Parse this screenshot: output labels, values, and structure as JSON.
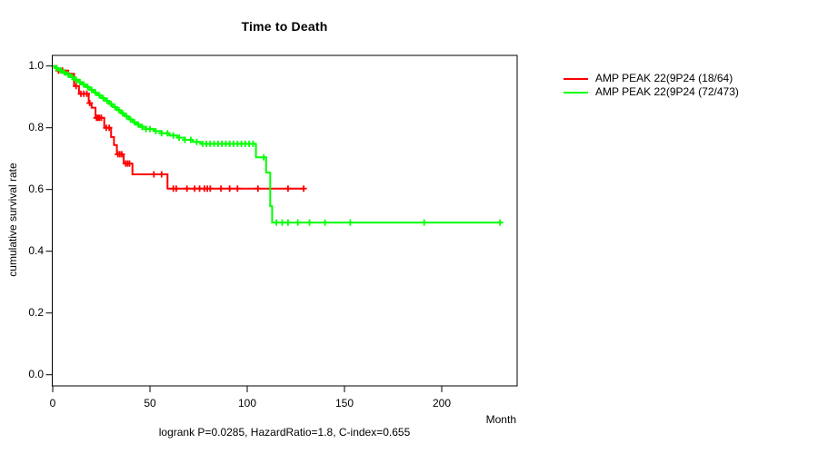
{
  "title": "Time to Death",
  "caption": "logrank P=0.0285, HazardRatio=1.8, C-index=0.655",
  "axes": {
    "x_label": "Month",
    "y_label": "cumulative survival rate",
    "x_tick_labels": [
      "0",
      "50",
      "100",
      "150",
      "200"
    ],
    "y_tick_labels": [
      "0.0",
      "0.2",
      "0.4",
      "0.6",
      "0.8",
      "1.0"
    ]
  },
  "legend": [
    {
      "label": "AMP PEAK 22(9P24 (18/64)",
      "color": "#ff0000"
    },
    {
      "label": "AMP PEAK 22(9P24 (72/473)",
      "color": "#00ff00"
    }
  ],
  "chart_data": {
    "type": "line",
    "subtype": "kaplan-meier-step",
    "title": "Time to Death",
    "xlabel": "Month",
    "ylabel": "cumulative survival rate",
    "xlim": [
      0,
      240
    ],
    "ylim": [
      0.0,
      1.0
    ],
    "x_ticks": [
      0,
      50,
      100,
      150,
      200
    ],
    "y_ticks": [
      0.0,
      0.2,
      0.4,
      0.6,
      0.8,
      1.0
    ],
    "grid": false,
    "legend_position": "outside-top-right",
    "frame_color": "#000000",
    "stats": {
      "logrank_p": 0.0285,
      "hazard_ratio": 1.8,
      "c_index": 0.655
    },
    "series": [
      {
        "name": "AMP PEAK 22(9P24 (18/64)",
        "color": "#ff0000",
        "events_over_n": "18/64",
        "steps": [
          [
            0,
            1.0
          ],
          [
            2,
            0.985
          ],
          [
            8,
            0.975
          ],
          [
            11,
            0.935
          ],
          [
            13.5,
            0.91
          ],
          [
            18.5,
            0.88
          ],
          [
            20,
            0.865
          ],
          [
            22,
            0.832
          ],
          [
            26.5,
            0.8
          ],
          [
            30,
            0.77
          ],
          [
            31.5,
            0.744
          ],
          [
            33,
            0.714
          ],
          [
            36.5,
            0.684
          ],
          [
            41,
            0.649
          ],
          [
            59,
            0.603
          ],
          [
            129,
            0.603
          ]
        ],
        "censor_times": [
          3,
          5,
          12,
          14.5,
          16,
          17.5,
          19,
          22.5,
          23,
          23.5,
          24,
          25,
          27.5,
          29,
          33.5,
          34.5,
          35.5,
          37.5,
          38.5,
          39.5,
          52,
          56,
          62,
          63.5,
          69,
          73,
          75.5,
          78,
          79.5,
          81,
          86.5,
          91,
          95,
          105.5,
          121,
          129
        ]
      },
      {
        "name": "AMP PEAK 22(9P24 (72/473)",
        "color": "#00ff00",
        "events_over_n": "72/473",
        "steps": [
          [
            0,
            1.0
          ],
          [
            1.5,
            0.993
          ],
          [
            3,
            0.986
          ],
          [
            5,
            0.979
          ],
          [
            7,
            0.972
          ],
          [
            9,
            0.964
          ],
          [
            11,
            0.956
          ],
          [
            13,
            0.948
          ],
          [
            15,
            0.94
          ],
          [
            17,
            0.932
          ],
          [
            19,
            0.923
          ],
          [
            21,
            0.914
          ],
          [
            23,
            0.905
          ],
          [
            25,
            0.896
          ],
          [
            27,
            0.887
          ],
          [
            29,
            0.877
          ],
          [
            31,
            0.867
          ],
          [
            33,
            0.857
          ],
          [
            35,
            0.847
          ],
          [
            37,
            0.837
          ],
          [
            39,
            0.827
          ],
          [
            41,
            0.818
          ],
          [
            43,
            0.81
          ],
          [
            45,
            0.803
          ],
          [
            48,
            0.796
          ],
          [
            52,
            0.789
          ],
          [
            56,
            0.782
          ],
          [
            60,
            0.775
          ],
          [
            64,
            0.768
          ],
          [
            68,
            0.761
          ],
          [
            72,
            0.754
          ],
          [
            76,
            0.748
          ],
          [
            104.5,
            0.704
          ],
          [
            109.7,
            0.655
          ],
          [
            111.8,
            0.546
          ],
          [
            112.8,
            0.493
          ],
          [
            231.5,
            0.493
          ]
        ],
        "censor_times": [
          2,
          4,
          6,
          8,
          10,
          12,
          14,
          16,
          18,
          20,
          22,
          24,
          26,
          28,
          30,
          32,
          34,
          36,
          38,
          40,
          42,
          44,
          46,
          48,
          50,
          53,
          56,
          59,
          62,
          65,
          68,
          71,
          74,
          77,
          79,
          81,
          83,
          85,
          87,
          89,
          91,
          93,
          95,
          97,
          99,
          101,
          103,
          108.5,
          115,
          118,
          121,
          126,
          132,
          140,
          153,
          191,
          230
        ]
      }
    ]
  }
}
